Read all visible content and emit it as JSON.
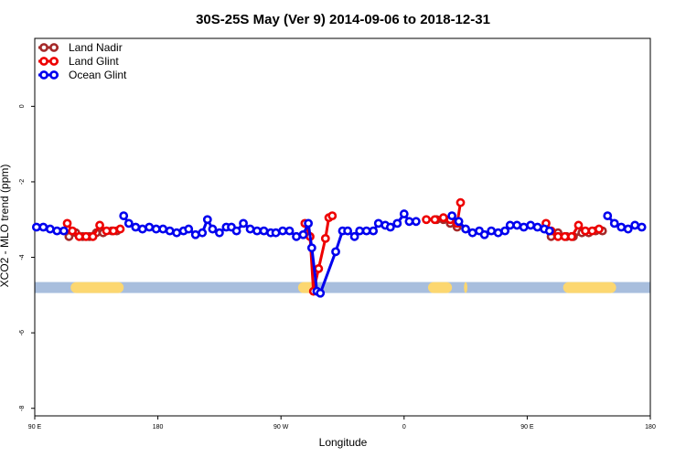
{
  "chart_data": {
    "type": "line",
    "title": "30S-25S May (Ver 9)   2014-09-06 to 2018-12-31",
    "xlabel": "Longitude",
    "ylabel": "XCO2 - MLO trend (ppm)",
    "xlim": [
      -90,
      270
    ],
    "ylim": [
      -8.2,
      1.8
    ],
    "x_ticks": [
      {
        "value": -90,
        "label": "90 E"
      },
      {
        "value": -18,
        "label": "180"
      },
      {
        "value": 54,
        "label": "90 W"
      },
      {
        "value": 126,
        "label": "0"
      },
      {
        "value": 198,
        "label": "90 E"
      },
      {
        "value": 270,
        "label": "180"
      }
    ],
    "y_ticks": [
      {
        "value": 0,
        "label": "0"
      },
      {
        "value": -2,
        "label": "-2"
      },
      {
        "value": -4,
        "label": "-4"
      },
      {
        "value": -6,
        "label": "-6"
      },
      {
        "value": -8,
        "label": "-8"
      }
    ],
    "legend_position": "top-left",
    "land_band": {
      "y": -4.8,
      "ocean_color": "#a8bedd",
      "land_color": "#fcd770",
      "land_segments": [
        [
          -69,
          -38
        ],
        [
          64,
          74
        ],
        [
          140,
          154
        ],
        [
          161,
          163
        ],
        [
          219,
          250
        ]
      ]
    },
    "series": [
      {
        "name": "Land Nadir",
        "color": "#a52a2a",
        "points": [
          [
            -70,
            -3.45
          ],
          [
            -66,
            -3.35
          ],
          [
            -62,
            -3.45
          ],
          [
            -58,
            -3.45
          ],
          [
            -54,
            -3.35
          ],
          [
            -50,
            -3.35
          ],
          [
            -45,
            -3.3
          ],
          [
            -42,
            -3.3
          ],
          [
            145,
            -3.0
          ],
          [
            149,
            -3.0
          ],
          [
            153,
            -3.1
          ],
          [
            157,
            -3.2
          ],
          [
            212,
            -3.45
          ],
          [
            216,
            -3.35
          ],
          [
            221,
            -3.45
          ],
          [
            225,
            -3.45
          ],
          [
            230,
            -3.35
          ],
          [
            234,
            -3.35
          ],
          [
            238,
            -3.3
          ],
          [
            242,
            -3.3
          ]
        ]
      },
      {
        "name": "Land Glint",
        "color": "#ee0000",
        "points": [
          [
            -71,
            -3.1
          ],
          [
            -68,
            -3.3
          ],
          [
            -64,
            -3.45
          ],
          [
            -60,
            -3.45
          ],
          [
            -56,
            -3.45
          ],
          [
            -52,
            -3.15
          ],
          [
            -48,
            -3.3
          ],
          [
            -44,
            -3.3
          ],
          [
            -40,
            -3.25
          ],
          [
            68,
            -3.1
          ],
          [
            71,
            -3.45
          ],
          [
            73,
            -4.9
          ],
          [
            76,
            -4.3
          ],
          [
            80,
            -3.5
          ],
          [
            82,
            -2.95
          ],
          [
            84,
            -2.9
          ],
          [
            139,
            -3.0
          ],
          [
            144,
            -3.0
          ],
          [
            149,
            -2.95
          ],
          [
            153,
            -3.0
          ],
          [
            157,
            -3.1
          ],
          [
            159,
            -2.55
          ],
          [
            209,
            -3.1
          ],
          [
            212,
            -3.3
          ],
          [
            216,
            -3.45
          ],
          [
            220,
            -3.45
          ],
          [
            224,
            -3.45
          ],
          [
            228,
            -3.15
          ],
          [
            232,
            -3.3
          ],
          [
            236,
            -3.3
          ],
          [
            240,
            -3.25
          ]
        ]
      },
      {
        "name": "Ocean Glint",
        "color": "#0000ee",
        "points": [
          [
            -89,
            -3.2
          ],
          [
            -85,
            -3.2
          ],
          [
            -81,
            -3.25
          ],
          [
            -77,
            -3.3
          ],
          [
            -73,
            -3.3
          ],
          [
            -38,
            -2.9
          ],
          [
            -35,
            -3.1
          ],
          [
            -31,
            -3.2
          ],
          [
            -27,
            -3.25
          ],
          [
            -23,
            -3.2
          ],
          [
            -19,
            -3.25
          ],
          [
            -15,
            -3.25
          ],
          [
            -11,
            -3.3
          ],
          [
            -7,
            -3.35
          ],
          [
            -3,
            -3.3
          ],
          [
            0,
            -3.25
          ],
          [
            4,
            -3.4
          ],
          [
            8,
            -3.35
          ],
          [
            11,
            -3.0
          ],
          [
            14,
            -3.25
          ],
          [
            18,
            -3.35
          ],
          [
            22,
            -3.2
          ],
          [
            25,
            -3.2
          ],
          [
            28,
            -3.3
          ],
          [
            32,
            -3.1
          ],
          [
            36,
            -3.25
          ],
          [
            40,
            -3.3
          ],
          [
            44,
            -3.3
          ],
          [
            48,
            -3.35
          ],
          [
            51,
            -3.35
          ],
          [
            55,
            -3.3
          ],
          [
            59,
            -3.3
          ],
          [
            63,
            -3.45
          ],
          [
            67,
            -3.4
          ],
          [
            70,
            -3.1
          ],
          [
            72,
            -3.75
          ],
          [
            75,
            -4.9
          ],
          [
            77,
            -4.95
          ],
          [
            86,
            -3.85
          ],
          [
            90,
            -3.3
          ],
          [
            93,
            -3.3
          ],
          [
            97,
            -3.45
          ],
          [
            100,
            -3.3
          ],
          [
            104,
            -3.3
          ],
          [
            108,
            -3.3
          ],
          [
            111,
            -3.1
          ],
          [
            115,
            -3.15
          ],
          [
            118,
            -3.2
          ],
          [
            122,
            -3.1
          ],
          [
            126,
            -2.85
          ],
          [
            129,
            -3.05
          ],
          [
            133,
            -3.05
          ],
          [
            154,
            -2.9
          ],
          [
            158,
            -3.05
          ],
          [
            162,
            -3.25
          ],
          [
            166,
            -3.35
          ],
          [
            170,
            -3.3
          ],
          [
            173,
            -3.4
          ],
          [
            177,
            -3.3
          ],
          [
            181,
            -3.35
          ],
          [
            185,
            -3.3
          ],
          [
            188,
            -3.15
          ],
          [
            192,
            -3.15
          ],
          [
            196,
            -3.2
          ],
          [
            200,
            -3.15
          ],
          [
            204,
            -3.2
          ],
          [
            208,
            -3.25
          ],
          [
            211,
            -3.3
          ],
          [
            245,
            -2.9
          ],
          [
            249,
            -3.1
          ],
          [
            253,
            -3.2
          ],
          [
            257,
            -3.25
          ],
          [
            261,
            -3.15
          ],
          [
            265,
            -3.2
          ]
        ]
      }
    ]
  }
}
